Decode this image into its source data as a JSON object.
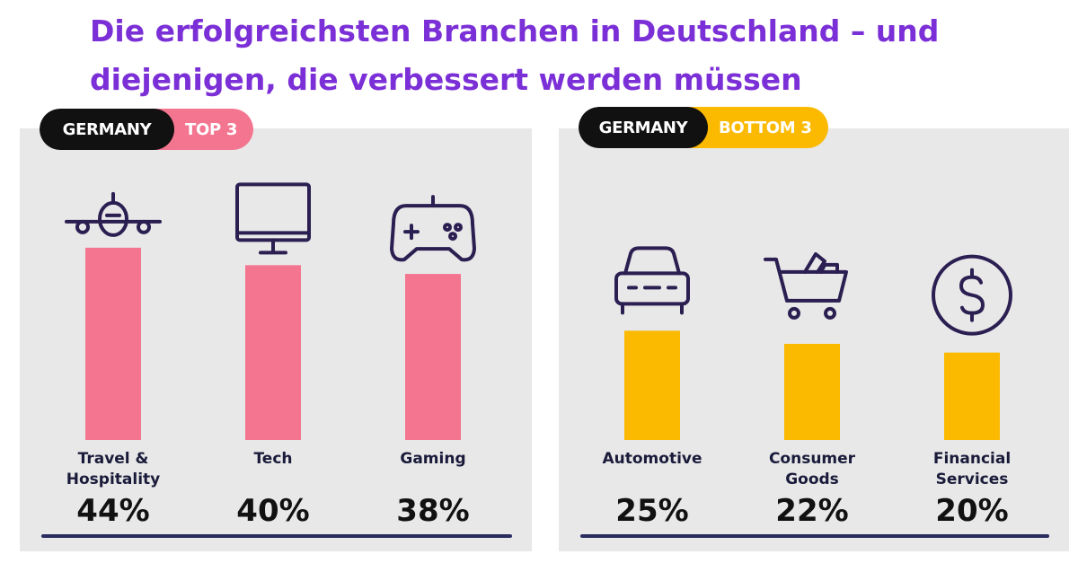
{
  "page": {
    "title": "Die erfolgreichsten Branchen in Deutschland – und diejenigen, die verbessert werden müssen"
  },
  "colors": {
    "title": "#7b2fd6",
    "top_accent": "#f4758f",
    "bottom_accent": "#fbb900",
    "panel_bg": "#e8e8e8",
    "dark": "#111111"
  },
  "chart_data": [
    {
      "type": "bar",
      "title": "",
      "badge": {
        "country": "GERMANY",
        "group": "TOP 3"
      },
      "categories": [
        "Travel & Hospitality",
        "Tech",
        "Gaming"
      ],
      "category_lines": [
        [
          "Travel &",
          "Hospitality"
        ],
        [
          "Tech"
        ],
        [
          "Gaming"
        ]
      ],
      "values": [
        44,
        40,
        38
      ],
      "value_labels": [
        "44%",
        "40%",
        "38%"
      ],
      "icons": [
        "airplane-icon",
        "monitor-icon",
        "gamepad-icon"
      ],
      "ylim": [
        0,
        60
      ],
      "grid": false,
      "xlabel": "",
      "ylabel": ""
    },
    {
      "type": "bar",
      "title": "",
      "badge": {
        "country": "GERMANY",
        "group": "BOTTOM 3"
      },
      "categories": [
        "Automotive",
        "Consumer Goods",
        "Financial Services"
      ],
      "category_lines": [
        [
          "Automotive"
        ],
        [
          "Consumer",
          "Goods"
        ],
        [
          "Financial",
          "Services"
        ]
      ],
      "values": [
        25,
        22,
        20
      ],
      "value_labels": [
        "25%",
        "22%",
        "20%"
      ],
      "icons": [
        "car-icon",
        "shopping-cart-icon",
        "dollar-coin-icon"
      ],
      "ylim": [
        0,
        60
      ],
      "grid": false,
      "xlabel": "",
      "ylabel": ""
    }
  ]
}
